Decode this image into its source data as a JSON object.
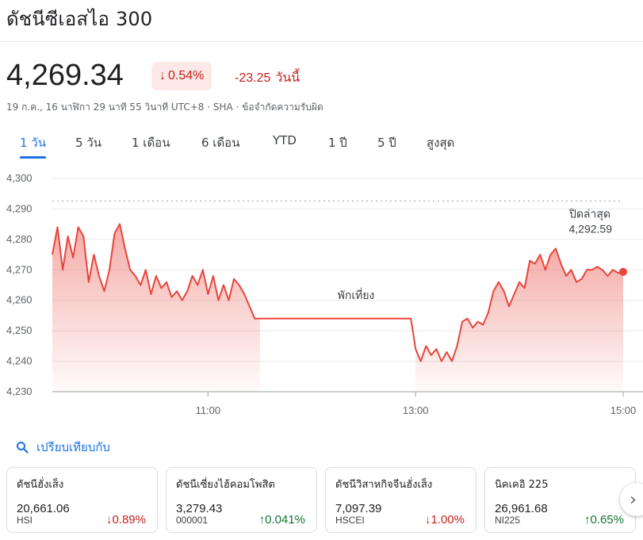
{
  "title": "ดัชนีซีเอสไอ 300",
  "price": "4,269.34",
  "change_pct": "0.54%",
  "change_abs": "-23.25",
  "change_period": "วันนี้",
  "meta": "19 ก.ค., 16 นาฬิกา 29 นาที 55 วินาที UTC+8 · SHA · ข้อจำกัดความรับผิด",
  "tabs": [
    "1 วัน",
    "5 วัน",
    "1 เดือน",
    "6 เดือน",
    "YTD",
    "1 ปี",
    "5 ปี",
    "สูงสุด"
  ],
  "active_tab": "1 วัน",
  "colors": {
    "down": "#c5221f",
    "up": "#137333",
    "accent": "#1a73e8",
    "line": "#e8453c"
  },
  "chart_data": {
    "type": "area",
    "y_ticks": [
      "4,300",
      "4,290",
      "4,280",
      "4,270",
      "4,260",
      "4,250",
      "4,240",
      "4,230"
    ],
    "ylim": [
      4230,
      4300
    ],
    "x_ticks": [
      "11:00",
      "13:00",
      "15:00"
    ],
    "previous_close_label": "ปิดล่าสุด",
    "previous_close_value": "4,292.59",
    "previous_close": 4292.59,
    "lunch_label": "พักเที่ยง",
    "morning_session": {
      "times": [
        "09:30",
        "09:33",
        "09:36",
        "09:39",
        "09:42",
        "09:45",
        "09:48",
        "09:51",
        "09:54",
        "09:57",
        "10:00",
        "10:03",
        "10:06",
        "10:09",
        "10:12",
        "10:15",
        "10:18",
        "10:21",
        "10:24",
        "10:27",
        "10:30",
        "10:33",
        "10:36",
        "10:39",
        "10:42",
        "10:45",
        "10:48",
        "10:51",
        "10:54",
        "10:57",
        "11:00",
        "11:03",
        "11:06",
        "11:09",
        "11:12",
        "11:15",
        "11:18",
        "11:21",
        "11:24",
        "11:27",
        "11:30"
      ],
      "values": [
        4275,
        4284,
        4270,
        4281,
        4274,
        4284,
        4281,
        4266,
        4275,
        4268,
        4263,
        4270,
        4282,
        4285,
        4277,
        4270,
        4268,
        4265,
        4270,
        4262,
        4268,
        4264,
        4266,
        4261,
        4263,
        4260,
        4263,
        4268,
        4265,
        4270,
        4262,
        4268,
        4260,
        4265,
        4260,
        4267,
        4265,
        4262,
        4258,
        4254,
        4254
      ]
    },
    "afternoon_session": {
      "times": [
        "13:00",
        "13:03",
        "13:06",
        "13:09",
        "13:12",
        "13:15",
        "13:18",
        "13:21",
        "13:24",
        "13:27",
        "13:30",
        "13:33",
        "13:36",
        "13:39",
        "13:42",
        "13:45",
        "13:48",
        "13:51",
        "13:54",
        "13:57",
        "14:00",
        "14:03",
        "14:06",
        "14:09",
        "14:12",
        "14:15",
        "14:18",
        "14:21",
        "14:24",
        "14:27",
        "14:30",
        "14:33",
        "14:36",
        "14:39",
        "14:42",
        "14:45",
        "14:48",
        "14:51",
        "14:54",
        "14:57",
        "15:00"
      ],
      "values": [
        4244,
        4240,
        4245,
        4242,
        4244,
        4240,
        4243,
        4240,
        4245,
        4253,
        4254,
        4251,
        4253,
        4252,
        4256,
        4263,
        4266,
        4263,
        4258,
        4262,
        4266,
        4264,
        4273,
        4272,
        4275,
        4270,
        4275,
        4277,
        4272,
        4268,
        4270,
        4266,
        4267,
        4270,
        4270,
        4271,
        4270,
        4268,
        4270,
        4269,
        4269.34
      ]
    }
  },
  "compare_label": "เปรียบเทียบกับ",
  "cards": [
    {
      "name": "ดัชนีฮั่งเส็ง",
      "value": "20,661.06",
      "symbol": "HSI",
      "pct": "0.89%",
      "direction": "down",
      "arrow": "↓"
    },
    {
      "name": "ดัชนีเซี่ยงไฮ้คอมโพสิต",
      "value": "3,279.43",
      "symbol": "000001",
      "pct": "0.041%",
      "direction": "up",
      "arrow": "↑"
    },
    {
      "name": "ดัชนีวิสาหกิจจีนฮั่งเส็ง",
      "value": "7,097.39",
      "symbol": "HSCEI",
      "pct": "1.00%",
      "direction": "down",
      "arrow": "↓"
    },
    {
      "name": "นิคเคอิ 225",
      "value": "26,961.68",
      "symbol": "NI225",
      "pct": "0.65%",
      "direction": "up",
      "arrow": "↑"
    }
  ],
  "next_icon": "chevron-right-icon"
}
